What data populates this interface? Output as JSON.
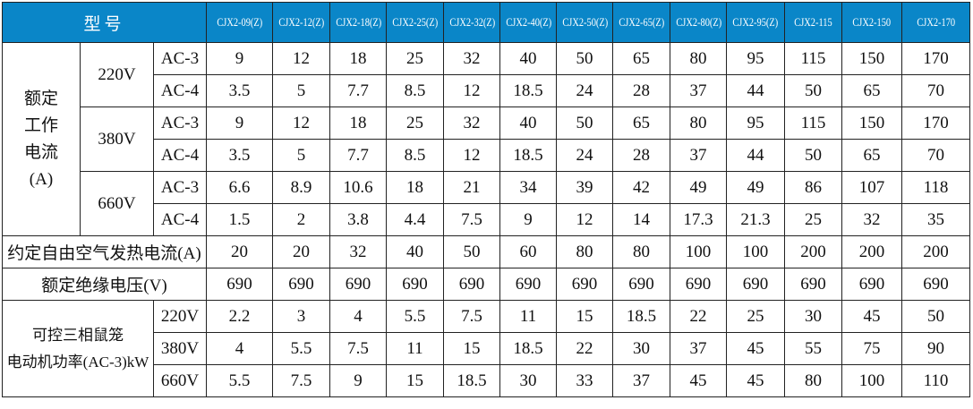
{
  "header": {
    "title": "型号",
    "models": [
      "CJX2-09(Z)",
      "CJX2-12(Z)",
      "CJX2-18(Z)",
      "CJX2-25(Z)",
      "CJX2-32(Z)",
      "CJX2-40(Z)",
      "CJX2-50(Z)",
      "CJX2-65(Z)",
      "CJX2-80(Z)",
      "CJX2-95(Z)",
      "CJX2-115",
      "CJX2-150",
      "CJX2-170"
    ]
  },
  "rated_current": {
    "label_lines": [
      "额定",
      "工作",
      "电流",
      "(A)"
    ],
    "groups": [
      {
        "voltage": "220V",
        "rows": [
          {
            "cat": "AC-3",
            "values": [
              "9",
              "12",
              "18",
              "25",
              "32",
              "40",
              "50",
              "65",
              "80",
              "95",
              "115",
              "150",
              "170"
            ]
          },
          {
            "cat": "AC-4",
            "values": [
              "3.5",
              "5",
              "7.7",
              "8.5",
              "12",
              "18.5",
              "24",
              "28",
              "37",
              "44",
              "50",
              "65",
              "70"
            ]
          }
        ]
      },
      {
        "voltage": "380V",
        "rows": [
          {
            "cat": "AC-3",
            "values": [
              "9",
              "12",
              "18",
              "25",
              "32",
              "40",
              "50",
              "65",
              "80",
              "95",
              "115",
              "150",
              "170"
            ]
          },
          {
            "cat": "AC-4",
            "values": [
              "3.5",
              "5",
              "7.7",
              "8.5",
              "12",
              "18.5",
              "24",
              "28",
              "37",
              "44",
              "50",
              "65",
              "70"
            ]
          }
        ]
      },
      {
        "voltage": "660V",
        "rows": [
          {
            "cat": "AC-3",
            "values": [
              "6.6",
              "8.9",
              "10.6",
              "18",
              "21",
              "34",
              "39",
              "42",
              "49",
              "49",
              "86",
              "107",
              "118"
            ]
          },
          {
            "cat": "AC-4",
            "values": [
              "1.5",
              "2",
              "3.8",
              "4.4",
              "7.5",
              "9",
              "12",
              "14",
              "17.3",
              "21.3",
              "25",
              "32",
              "35"
            ]
          }
        ]
      }
    ]
  },
  "thermal_current": {
    "label": "约定自由空气发热电流(A)",
    "values": [
      "20",
      "20",
      "32",
      "40",
      "50",
      "60",
      "80",
      "80",
      "100",
      "100",
      "200",
      "200",
      "200"
    ]
  },
  "insulation_voltage": {
    "label": "额定绝缘电压(V)",
    "values": [
      "690",
      "690",
      "690",
      "690",
      "690",
      "690",
      "690",
      "690",
      "690",
      "690",
      "690",
      "690",
      "690"
    ]
  },
  "motor_power": {
    "label_lines": [
      "可控三相鼠笼",
      "电动机功率(AC-3)kW"
    ],
    "rows": [
      {
        "voltage": "220V",
        "values": [
          "2.2",
          "3",
          "4",
          "5.5",
          "7.5",
          "11",
          "15",
          "18.5",
          "22",
          "25",
          "30",
          "45",
          "50"
        ]
      },
      {
        "voltage": "380V",
        "values": [
          "4",
          "5.5",
          "7.5",
          "11",
          "15",
          "18.5",
          "22",
          "30",
          "37",
          "45",
          "55",
          "75",
          "90"
        ]
      },
      {
        "voltage": "660V",
        "values": [
          "5.5",
          "7.5",
          "9",
          "15",
          "18.5",
          "30",
          "33",
          "37",
          "45",
          "45",
          "80",
          "100",
          "110"
        ]
      }
    ]
  },
  "colors": {
    "header_bg": "#0a86c8",
    "header_text": "#ffffff"
  }
}
